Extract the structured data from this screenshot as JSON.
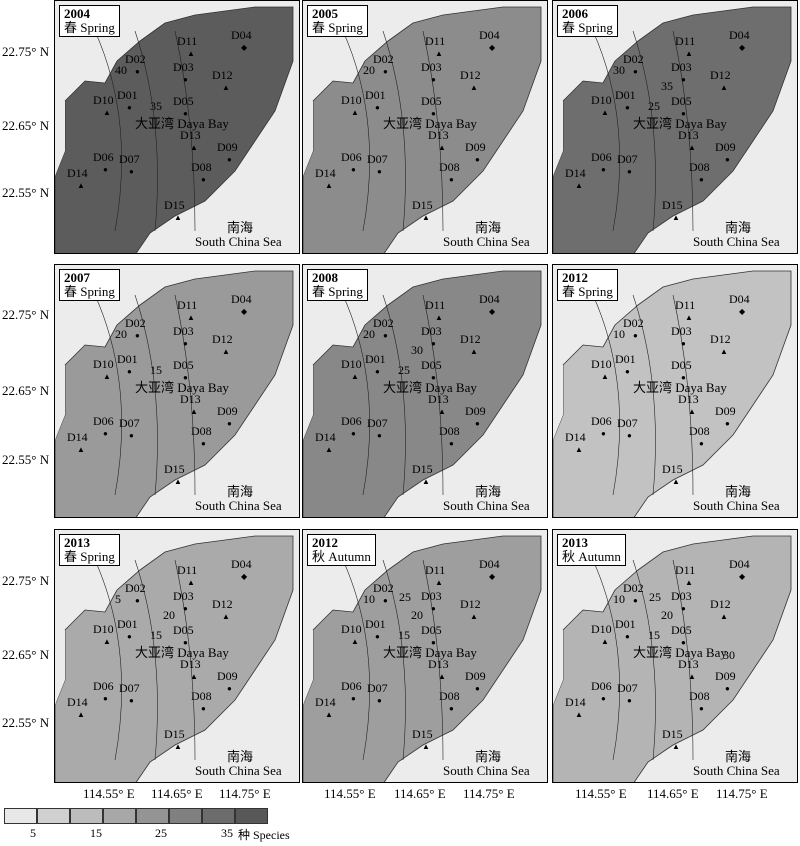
{
  "panels": [
    {
      "year": "2004",
      "season": "春 Spring",
      "contours": [
        "40",
        "35"
      ],
      "shade": "#5c5c5c"
    },
    {
      "year": "2005",
      "season": "春 Spring",
      "contours": [
        "20"
      ],
      "shade": "#8c8c8c"
    },
    {
      "year": "2006",
      "season": "春 Spring",
      "contours": [
        "30",
        "25",
        "35"
      ],
      "shade": "#6e6e6e"
    },
    {
      "year": "2007",
      "season": "春 Spring",
      "contours": [
        "20",
        "15"
      ],
      "shade": "#9a9a9a"
    },
    {
      "year": "2008",
      "season": "春 Spring",
      "contours": [
        "20",
        "25",
        "30"
      ],
      "shade": "#888888"
    },
    {
      "year": "2012",
      "season": "春 Spring",
      "contours": [
        "10"
      ],
      "shade": "#c2c2c2"
    },
    {
      "year": "2013",
      "season": "春 Spring",
      "contours": [
        "5",
        "15",
        "20"
      ],
      "shade": "#aaaaaa"
    },
    {
      "year": "2012",
      "season": "秋 Autumn",
      "contours": [
        "10",
        "15",
        "20",
        "25"
      ],
      "shade": "#9e9e9e"
    },
    {
      "year": "2013",
      "season": "秋 Autumn",
      "contours": [
        "10",
        "15",
        "20",
        "25",
        "30"
      ],
      "shade": "#b4b4b4"
    }
  ],
  "stations": {
    "D04": "D04",
    "D11": "D11",
    "D02": "D02",
    "D03": "D03",
    "D12": "D12",
    "D10": "D10",
    "D01": "D01",
    "D05": "D05",
    "D13": "D13",
    "D09": "D09",
    "D06": "D06",
    "D07": "D07",
    "D14": "D14",
    "D08": "D08",
    "D15": "D15"
  },
  "labels": {
    "bay": "大亚湾 Daya Bay",
    "sea_cn": "南海",
    "sea_en": "South China Sea"
  },
  "axes": {
    "lat_ticks": [
      "22.75° N",
      "22.65° N",
      "22.55° N"
    ],
    "lon_ticks": [
      "114.55° E",
      "114.65° E",
      "114.75° E"
    ]
  },
  "legend": {
    "colors": [
      "#e8e8e8",
      "#d0d0d0",
      "#bcbcbc",
      "#a8a8a8",
      "#949494",
      "#808080",
      "#6c6c6c",
      "#585858"
    ],
    "tick_labels": [
      "5",
      "15",
      "25",
      "35"
    ],
    "unit": "种  Species"
  }
}
